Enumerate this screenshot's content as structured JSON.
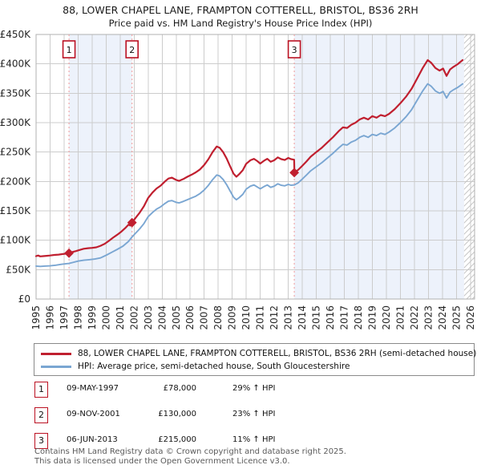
{
  "title": {
    "line1": "88, LOWER CHAPEL LANE, FRAMPTON COTTERELL, BRISTOL, BS36 2RH",
    "line2": "Price paid vs. HM Land Registry's House Price Index (HPI)"
  },
  "chart_data": {
    "type": "line",
    "x_axis": {
      "min": 1995,
      "max": 2026.3,
      "ticks": [
        1995,
        1996,
        1997,
        1998,
        1999,
        2000,
        2001,
        2002,
        2003,
        2004,
        2005,
        2006,
        2007,
        2008,
        2009,
        2010,
        2011,
        2012,
        2013,
        2014,
        2015,
        2016,
        2017,
        2018,
        2019,
        2020,
        2021,
        2022,
        2023,
        2024,
        2025,
        2026
      ]
    },
    "y_axis": {
      "min": 0,
      "max": 450000,
      "tick_step": 50000,
      "tick_labels": [
        "£0",
        "£50K",
        "£100K",
        "£150K",
        "£200K",
        "£250K",
        "£300K",
        "£350K",
        "£400K",
        "£450K"
      ]
    },
    "grid": true,
    "legend_position": "below",
    "hatch_start": 2025.55,
    "bands": [
      [
        1997.35,
        2001.85
      ],
      [
        2013.43,
        2025.55
      ]
    ],
    "colors": {
      "price": "#c01f2f",
      "hpi": "#7aa6d2",
      "band": "#edf2fb",
      "grid": "#cccccc",
      "border": "#b0b0b0",
      "sale_line": "#f09a9a",
      "sale_box": "#bb1122",
      "hatch": "#c6c6c6"
    },
    "series": [
      {
        "name": "88, LOWER CHAPEL LANE, FRAMPTON COTTERELL, BRISTOL, BS36 2RH (semi-detached house)",
        "color": "#c01f2f",
        "width": 2.2,
        "points": [
          [
            1995.0,
            73000
          ],
          [
            1995.15,
            74000
          ],
          [
            1995.3,
            72500
          ],
          [
            1995.5,
            73000
          ],
          [
            1995.75,
            73500
          ],
          [
            1996.0,
            74000
          ],
          [
            1996.3,
            75000
          ],
          [
            1996.6,
            75500
          ],
          [
            1996.9,
            76500
          ],
          [
            1997.1,
            77000
          ],
          [
            1997.35,
            78000
          ],
          [
            1997.6,
            80000
          ],
          [
            1997.85,
            81500
          ],
          [
            1998.1,
            83500
          ],
          [
            1998.4,
            85500
          ],
          [
            1998.7,
            86500
          ],
          [
            1999.0,
            87000
          ],
          [
            1999.3,
            88000
          ],
          [
            1999.6,
            90500
          ],
          [
            1999.9,
            94000
          ],
          [
            2000.2,
            99000
          ],
          [
            2000.5,
            104500
          ],
          [
            2000.8,
            109500
          ],
          [
            2001.1,
            115000
          ],
          [
            2001.4,
            121500
          ],
          [
            2001.6,
            126500
          ],
          [
            2001.72,
            125000
          ],
          [
            2001.85,
            130000
          ],
          [
            2002.1,
            138000
          ],
          [
            2002.4,
            147000
          ],
          [
            2002.7,
            158000
          ],
          [
            2003.0,
            172000
          ],
          [
            2003.3,
            181000
          ],
          [
            2003.6,
            188000
          ],
          [
            2003.9,
            193000
          ],
          [
            2004.2,
            200000
          ],
          [
            2004.45,
            205000
          ],
          [
            2004.7,
            206500
          ],
          [
            2005.0,
            202500
          ],
          [
            2005.2,
            201000
          ],
          [
            2005.5,
            204000
          ],
          [
            2005.8,
            208000
          ],
          [
            2006.1,
            211500
          ],
          [
            2006.4,
            215500
          ],
          [
            2006.7,
            220500
          ],
          [
            2007.0,
            228000
          ],
          [
            2007.3,
            238000
          ],
          [
            2007.6,
            250000
          ],
          [
            2007.9,
            259500
          ],
          [
            2008.1,
            257500
          ],
          [
            2008.35,
            250000
          ],
          [
            2008.6,
            239000
          ],
          [
            2008.85,
            226000
          ],
          [
            2009.1,
            213000
          ],
          [
            2009.3,
            208000
          ],
          [
            2009.5,
            212500
          ],
          [
            2009.75,
            219000
          ],
          [
            2010.0,
            230000
          ],
          [
            2010.3,
            236000
          ],
          [
            2010.55,
            238500
          ],
          [
            2010.8,
            234500
          ],
          [
            2011.0,
            230500
          ],
          [
            2011.25,
            235000
          ],
          [
            2011.5,
            238500
          ],
          [
            2011.75,
            233500
          ],
          [
            2012.0,
            236000
          ],
          [
            2012.25,
            241000
          ],
          [
            2012.5,
            238000
          ],
          [
            2012.75,
            236500
          ],
          [
            2013.0,
            240000
          ],
          [
            2013.2,
            238000
          ],
          [
            2013.42,
            237000
          ],
          [
            2013.44,
            215000
          ],
          [
            2013.7,
            219500
          ],
          [
            2014.0,
            226500
          ],
          [
            2014.3,
            234000
          ],
          [
            2014.6,
            242000
          ],
          [
            2015.0,
            250000
          ],
          [
            2015.4,
            257500
          ],
          [
            2015.8,
            266500
          ],
          [
            2016.2,
            275500
          ],
          [
            2016.6,
            285500
          ],
          [
            2016.9,
            292000
          ],
          [
            2017.2,
            291000
          ],
          [
            2017.5,
            296500
          ],
          [
            2017.8,
            300000
          ],
          [
            2018.1,
            305500
          ],
          [
            2018.4,
            308500
          ],
          [
            2018.7,
            305500
          ],
          [
            2019.0,
            311000
          ],
          [
            2019.3,
            308500
          ],
          [
            2019.6,
            313000
          ],
          [
            2019.9,
            311000
          ],
          [
            2020.2,
            315000
          ],
          [
            2020.6,
            323000
          ],
          [
            2021.0,
            333000
          ],
          [
            2021.4,
            344000
          ],
          [
            2021.8,
            357500
          ],
          [
            2022.2,
            375000
          ],
          [
            2022.6,
            393000
          ],
          [
            2022.95,
            406500
          ],
          [
            2023.2,
            402000
          ],
          [
            2023.5,
            393000
          ],
          [
            2023.8,
            388500
          ],
          [
            2024.05,
            392000
          ],
          [
            2024.3,
            379500
          ],
          [
            2024.55,
            390500
          ],
          [
            2024.8,
            395000
          ],
          [
            2025.1,
            399500
          ],
          [
            2025.45,
            406500
          ]
        ]
      },
      {
        "name": "HPI: Average price, semi-detached house, South Gloucestershire",
        "color": "#7aa6d2",
        "width": 1.9,
        "points": [
          [
            1995.0,
            56000
          ],
          [
            1995.3,
            55500
          ],
          [
            1995.6,
            56000
          ],
          [
            1996.0,
            56500
          ],
          [
            1996.4,
            57500
          ],
          [
            1996.8,
            59000
          ],
          [
            1997.1,
            59800
          ],
          [
            1997.35,
            60500
          ],
          [
            1997.6,
            62000
          ],
          [
            1998.0,
            64500
          ],
          [
            1998.4,
            66000
          ],
          [
            1998.8,
            67000
          ],
          [
            1999.2,
            68000
          ],
          [
            1999.6,
            70000
          ],
          [
            2000.0,
            74500
          ],
          [
            2000.4,
            79500
          ],
          [
            2000.8,
            84500
          ],
          [
            2001.2,
            90000
          ],
          [
            2001.6,
            98000
          ],
          [
            2001.85,
            105500
          ],
          [
            2002.1,
            112000
          ],
          [
            2002.4,
            119500
          ],
          [
            2002.7,
            128500
          ],
          [
            2003.0,
            140000
          ],
          [
            2003.3,
            147000
          ],
          [
            2003.6,
            153000
          ],
          [
            2003.9,
            157000
          ],
          [
            2004.2,
            162500
          ],
          [
            2004.45,
            166500
          ],
          [
            2004.7,
            167500
          ],
          [
            2005.0,
            164500
          ],
          [
            2005.2,
            163500
          ],
          [
            2005.5,
            166000
          ],
          [
            2005.8,
            169000
          ],
          [
            2006.1,
            172000
          ],
          [
            2006.4,
            175000
          ],
          [
            2006.7,
            179500
          ],
          [
            2007.0,
            185500
          ],
          [
            2007.3,
            193500
          ],
          [
            2007.6,
            203000
          ],
          [
            2007.9,
            211000
          ],
          [
            2008.1,
            209500
          ],
          [
            2008.35,
            203500
          ],
          [
            2008.6,
            194500
          ],
          [
            2008.85,
            184000
          ],
          [
            2009.1,
            173000
          ],
          [
            2009.3,
            169000
          ],
          [
            2009.5,
            172500
          ],
          [
            2009.75,
            178000
          ],
          [
            2010.0,
            187000
          ],
          [
            2010.3,
            192000
          ],
          [
            2010.55,
            194000
          ],
          [
            2010.8,
            190500
          ],
          [
            2011.0,
            187500
          ],
          [
            2011.25,
            191000
          ],
          [
            2011.5,
            194000
          ],
          [
            2011.75,
            190000
          ],
          [
            2012.0,
            192000
          ],
          [
            2012.25,
            196000
          ],
          [
            2012.5,
            193500
          ],
          [
            2012.75,
            192500
          ],
          [
            2013.0,
            195000
          ],
          [
            2013.2,
            193500
          ],
          [
            2013.43,
            194000
          ],
          [
            2013.7,
            197500
          ],
          [
            2014.0,
            204000
          ],
          [
            2014.3,
            211000
          ],
          [
            2014.6,
            218000
          ],
          [
            2015.0,
            225000
          ],
          [
            2015.4,
            232000
          ],
          [
            2015.8,
            240000
          ],
          [
            2016.2,
            248000
          ],
          [
            2016.6,
            257000
          ],
          [
            2016.9,
            263000
          ],
          [
            2017.2,
            262000
          ],
          [
            2017.5,
            267000
          ],
          [
            2017.8,
            270000
          ],
          [
            2018.1,
            275000
          ],
          [
            2018.4,
            278000
          ],
          [
            2018.7,
            275000
          ],
          [
            2019.0,
            280000
          ],
          [
            2019.3,
            278000
          ],
          [
            2019.6,
            282000
          ],
          [
            2019.9,
            280000
          ],
          [
            2020.2,
            284000
          ],
          [
            2020.6,
            291000
          ],
          [
            2021.0,
            300000
          ],
          [
            2021.4,
            310000
          ],
          [
            2021.8,
            322000
          ],
          [
            2022.2,
            338000
          ],
          [
            2022.6,
            354000
          ],
          [
            2022.95,
            366000
          ],
          [
            2023.2,
            362000
          ],
          [
            2023.5,
            354000
          ],
          [
            2023.8,
            350000
          ],
          [
            2024.05,
            353000
          ],
          [
            2024.3,
            342000
          ],
          [
            2024.55,
            352000
          ],
          [
            2024.8,
            356000
          ],
          [
            2025.1,
            360000
          ],
          [
            2025.45,
            366000
          ]
        ]
      }
    ],
    "sales": [
      {
        "label": "1",
        "year": 1997.35,
        "price": 78000
      },
      {
        "label": "2",
        "year": 2001.85,
        "price": 130000
      },
      {
        "label": "3",
        "year": 2013.43,
        "price": 215000
      }
    ]
  },
  "legend": {
    "items": [
      {
        "label": "88, LOWER CHAPEL LANE, FRAMPTON COTTERELL, BRISTOL, BS36 2RH (semi-detached house)"
      },
      {
        "label": "HPI: Average price, semi-detached house, South Gloucestershire"
      }
    ]
  },
  "table": {
    "rows": [
      {
        "marker": "1",
        "date": "09-MAY-1997",
        "price": "£78,000",
        "vs_hpi": "29% ↑ HPI"
      },
      {
        "marker": "2",
        "date": "09-NOV-2001",
        "price": "£130,000",
        "vs_hpi": "23% ↑ HPI"
      },
      {
        "marker": "3",
        "date": "06-JUN-2013",
        "price": "£215,000",
        "vs_hpi": "11% ↑ HPI"
      }
    ]
  },
  "footer": {
    "line1": "Contains HM Land Registry data © Crown copyright and database right 2025.",
    "line2": "This data is licensed under the Open Government Licence v3.0."
  }
}
